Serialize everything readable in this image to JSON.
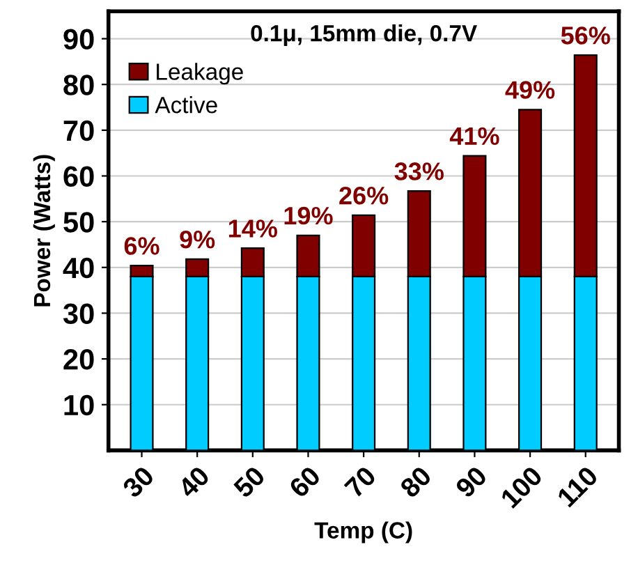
{
  "chart_data": {
    "type": "bar",
    "stacked": true,
    "xlabel": "Temp (C)",
    "ylabel": "Power (Watts)",
    "annotations": [
      "0.1μ, 15mm die, 0.7V",
      {
        "text": "6%",
        "x": "30",
        "y": 40.4
      },
      {
        "text": "9%",
        "x": "40",
        "y": 41.8
      },
      {
        "text": "14%",
        "x": "50",
        "y": 44.2
      },
      {
        "text": "19%",
        "x": "60",
        "y": 47
      },
      {
        "text": "26%",
        "x": "70",
        "y": 51.4
      },
      {
        "text": "33%",
        "x": "80",
        "y": 56.7
      },
      {
        "text": "41%",
        "x": "90",
        "y": 64.4
      },
      {
        "text": "49%",
        "x": "100",
        "y": 74.5
      },
      {
        "text": "56%",
        "x": "110",
        "y": 86.4
      }
    ],
    "categories": [
      "30",
      "40",
      "50",
      "60",
      "70",
      "80",
      "90",
      "100",
      "110"
    ],
    "series": [
      {
        "name": "Active",
        "color": "#00ccff",
        "values": [
          38,
          38,
          38,
          38,
          38,
          38,
          38,
          38,
          38
        ]
      },
      {
        "name": "Leakage",
        "color": "#800000",
        "values": [
          2.4,
          3.8,
          6.2,
          9,
          13.4,
          18.7,
          26.4,
          36.5,
          48.4
        ]
      }
    ],
    "ylim": [
      0,
      96
    ],
    "yticks": [
      10,
      20,
      30,
      40,
      50,
      60,
      70,
      80,
      90
    ],
    "grid": "y",
    "legend": "top left"
  }
}
